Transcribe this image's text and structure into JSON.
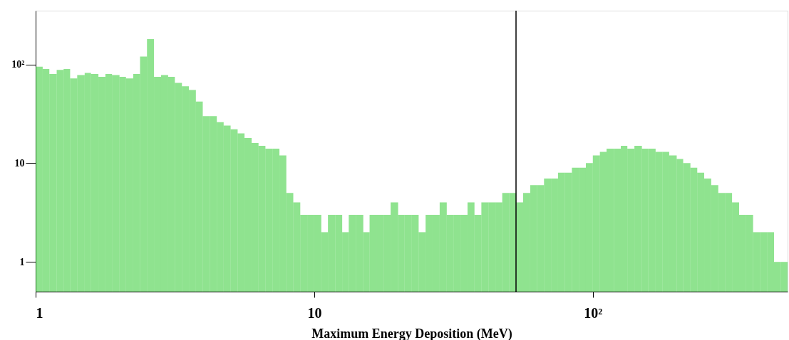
{
  "chart_data": {
    "type": "histogram",
    "xlabel": "Maximum Energy Deposition (MeV)",
    "color": "#33cc33",
    "log": "xy",
    "grid": false,
    "xlim": [
      1,
      500
    ],
    "ylim": [
      0.5,
      350
    ],
    "xticks": [
      1,
      10,
      {
        "value": 100,
        "label": "10²"
      }
    ],
    "yticks": [
      1,
      10,
      {
        "value": 100,
        "label": "10²"
      }
    ],
    "ref_lines": [
      {
        "axis": "x",
        "value": 53,
        "color": "#000000"
      }
    ],
    "bins": [
      1,
      1.06,
      1.12,
      1.19,
      1.26,
      1.33,
      1.41,
      1.5,
      1.58,
      1.68,
      1.78,
      1.88,
      2.0,
      2.11,
      2.24,
      2.37,
      2.51,
      2.66,
      2.82,
      2.99,
      3.16,
      3.35,
      3.55,
      3.76,
      3.98,
      4.22,
      4.47,
      4.73,
      5.01,
      5.31,
      5.62,
      5.96,
      6.31,
      6.68,
      7.08,
      7.5,
      7.94,
      8.41,
      8.91,
      9.44,
      10,
      10.6,
      11.2,
      11.9,
      12.6,
      13.3,
      14.1,
      15.0,
      15.8,
      16.8,
      17.8,
      18.8,
      20.0,
      21.1,
      22.4,
      23.7,
      25.1,
      26.6,
      28.2,
      29.9,
      31.6,
      33.5,
      35.5,
      37.6,
      39.8,
      42.2,
      44.7,
      47.3,
      50.1,
      53.1,
      56.2,
      59.6,
      63.1,
      66.8,
      70.8,
      75.0,
      79.4,
      84.1,
      89.1,
      94.4,
      100,
      106,
      112,
      119,
      126,
      133,
      141,
      150,
      158,
      168,
      178,
      188,
      200,
      211,
      224,
      237,
      251,
      266,
      282,
      299,
      316,
      335,
      355,
      376,
      398,
      422,
      447,
      473,
      500
    ],
    "values": [
      95,
      90,
      80,
      88,
      90,
      72,
      78,
      82,
      80,
      75,
      80,
      78,
      75,
      72,
      80,
      120,
      180,
      75,
      78,
      75,
      65,
      60,
      55,
      42,
      30,
      30,
      26,
      24,
      22,
      20,
      18,
      16,
      15,
      14,
      14,
      12,
      5,
      4,
      3,
      3,
      3,
      2,
      3,
      3,
      2,
      3,
      3,
      2,
      3,
      3,
      3,
      4,
      3,
      3,
      3,
      2,
      3,
      3,
      4,
      3,
      3,
      3,
      4,
      3,
      4,
      4,
      4,
      5,
      5,
      4,
      5,
      6,
      6,
      7,
      7,
      8,
      8,
      9,
      9,
      10,
      12,
      13,
      14,
      14,
      15,
      14,
      15,
      14,
      14,
      13,
      13,
      12,
      11,
      10,
      9,
      8,
      7,
      6,
      5,
      5,
      4,
      3,
      3,
      2,
      2,
      2,
      1,
      1
    ]
  }
}
